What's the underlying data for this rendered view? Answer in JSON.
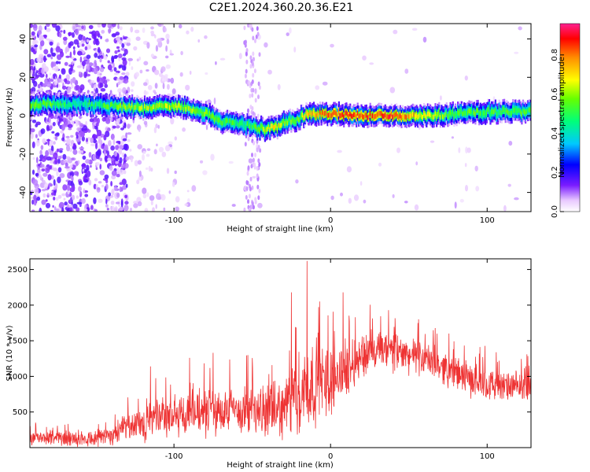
{
  "title": "C2E1.2024.360.20.36.E21",
  "chart_data": [
    {
      "type": "heatmap",
      "xlabel": "Height of straight line (km)",
      "ylabel": "Frequency (Hz)",
      "colorbar_label": "Normalized spectral amplitude",
      "xlim": [
        -192,
        128
      ],
      "ylim": [
        -50,
        48
      ],
      "xticks": [
        -100,
        0,
        100
      ],
      "yticks": [
        -40,
        -20,
        0,
        20,
        40
      ],
      "colorbar_ticks": [
        "0.0",
        "0.2",
        "0.4",
        "0.6",
        "0.8"
      ],
      "colorbar_range": [
        0,
        0.96
      ],
      "grid": false,
      "ridge": {
        "x": [
          -188,
          -160,
          -140,
          -120,
          -100,
          -85,
          -70,
          -55,
          -42,
          -35,
          -28,
          -22,
          -15,
          0,
          20,
          40,
          60,
          80,
          100,
          128
        ],
        "freq": [
          6,
          6,
          5,
          4,
          5,
          3,
          -3,
          -5,
          -7,
          -6,
          -3,
          -2,
          1,
          1,
          0,
          0,
          0,
          1,
          2,
          2
        ],
        "amplitude": [
          0.6,
          0.45,
          0.55,
          0.62,
          0.65,
          0.6,
          0.55,
          0.5,
          0.65,
          0.7,
          0.6,
          0.55,
          0.75,
          0.85,
          0.88,
          0.88,
          0.7,
          0.55,
          0.55,
          0.55
        ]
      },
      "noise_region_x": [
        -192,
        -130
      ]
    },
    {
      "type": "line",
      "xlabel": "Height of straight line (km)",
      "ylabel": "SNR (10 * v/v)",
      "xlim": [
        -192,
        128
      ],
      "ylim": [
        0,
        2650
      ],
      "xticks": [
        -100,
        0,
        100
      ],
      "yticks": [
        500,
        1000,
        1500,
        2000,
        2500
      ],
      "color": "#ee3333",
      "grid": false,
      "series": [
        {
          "x": [
            -192,
            -170,
            -150,
            -140,
            -120,
            -100,
            -80,
            -60,
            -40,
            -30,
            -20,
            -15,
            -10,
            0,
            10,
            20,
            30,
            40,
            50,
            60,
            70,
            80,
            90,
            100,
            110,
            128
          ],
          "base": [
            120,
            130,
            140,
            180,
            350,
            450,
            500,
            520,
            500,
            550,
            750,
            850,
            900,
            950,
            1100,
            1300,
            1350,
            1350,
            1300,
            1250,
            1150,
            1050,
            950,
            900,
            850,
            850
          ],
          "spread": [
            120,
            130,
            150,
            180,
            300,
            380,
            400,
            420,
            420,
            500,
            700,
            800,
            700,
            600,
            450,
            400,
            350,
            350,
            300,
            280,
            280,
            280,
            280,
            280,
            250,
            250
          ],
          "spikes": [
            {
              "x": -15,
              "y": 2620
            },
            {
              "x": -25,
              "y": 2180
            },
            {
              "x": -7,
              "y": 2050
            },
            {
              "x": 8,
              "y": 2180
            },
            {
              "x": 37,
              "y": 1930
            },
            {
              "x": -75,
              "y": 1330
            },
            {
              "x": -90,
              "y": 1260
            },
            {
              "x": -115,
              "y": 1140
            }
          ]
        }
      ]
    }
  ]
}
